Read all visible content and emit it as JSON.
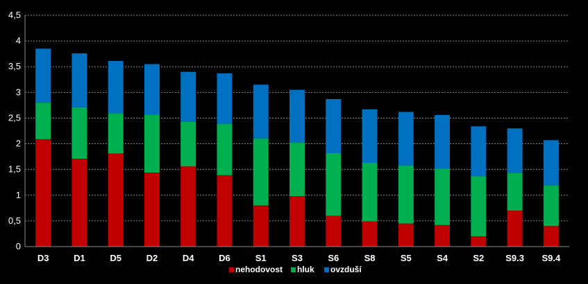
{
  "chart_data": {
    "type": "bar",
    "stacked": true,
    "categories": [
      "D3",
      "D1",
      "D5",
      "D2",
      "D4",
      "D6",
      "S1",
      "S3",
      "S6",
      "S8",
      "S5",
      "S4",
      "S2",
      "S9.3",
      "S9.4"
    ],
    "series": [
      {
        "name": "nehodovost",
        "color": "#c00000",
        "values": [
          2.09,
          1.71,
          1.81,
          1.44,
          1.56,
          1.39,
          0.8,
          0.98,
          0.6,
          0.49,
          0.45,
          0.42,
          0.2,
          0.7,
          0.4
        ]
      },
      {
        "name": "hluk",
        "color": "#00b050",
        "values": [
          0.71,
          1.0,
          0.78,
          1.12,
          0.87,
          1.0,
          1.3,
          1.04,
          1.22,
          1.14,
          1.13,
          1.1,
          1.17,
          0.73,
          0.79
        ]
      },
      {
        "name": "ovzduší",
        "color": "#0070c0",
        "values": [
          1.05,
          1.05,
          1.02,
          0.99,
          0.97,
          0.98,
          1.05,
          1.03,
          1.05,
          1.04,
          1.04,
          1.04,
          0.97,
          0.87,
          0.88
        ]
      }
    ],
    "ylim": [
      0,
      4.5
    ],
    "yticks": [
      "0",
      "0,5",
      "1",
      "1,5",
      "2",
      "2,5",
      "3",
      "3,5",
      "4",
      "4,5"
    ],
    "grid": "horizontal dashed",
    "legend": "bottom",
    "background": "#000000",
    "title": "",
    "xlabel": "",
    "ylabel": ""
  }
}
